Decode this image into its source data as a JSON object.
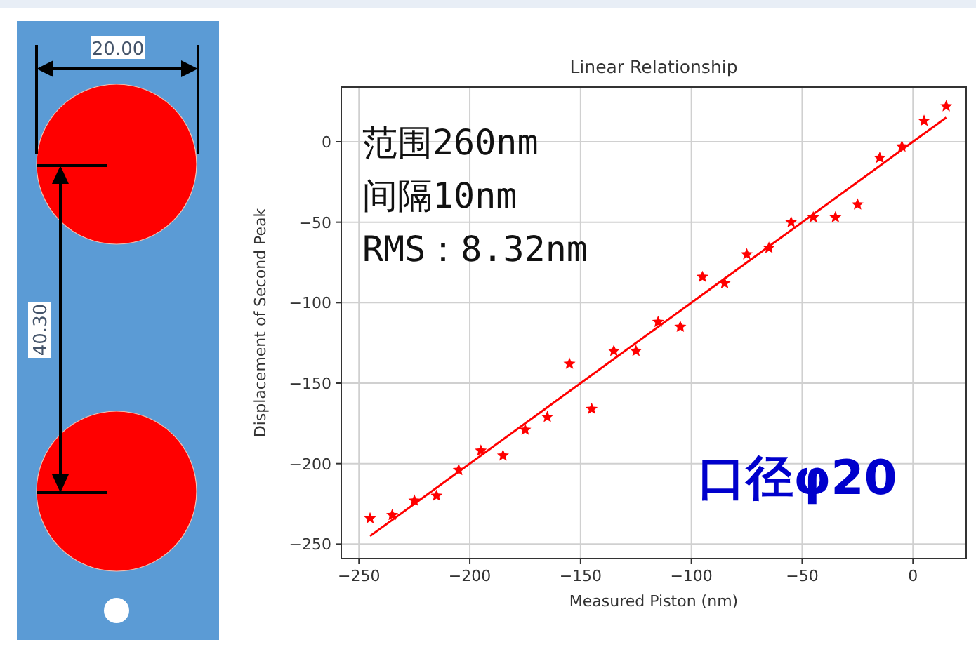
{
  "chart_data": {
    "type": "scatter",
    "title": "Linear Relationship",
    "xlabel": "Measured Piston (nm)",
    "ylabel": "Displacement of Second Peak",
    "xlim": [
      -258,
      24
    ],
    "ylim": [
      -259,
      34
    ],
    "xticks": [
      -250,
      -200,
      -150,
      -100,
      -50,
      0
    ],
    "yticks": [
      -250,
      -200,
      -150,
      -100,
      -50,
      0
    ],
    "grid": true,
    "series": [
      {
        "color": "#ff0000",
        "marker": "star",
        "x": [
          -245,
          -235,
          -225,
          -215,
          -205,
          -195,
          -185,
          -175,
          -165,
          -155,
          -145,
          -135,
          -125,
          -115,
          -105,
          -95,
          -85,
          -75,
          -65,
          -55,
          -45,
          -35,
          -25,
          -15,
          -5,
          5,
          15
        ],
        "values": [
          -234,
          -232,
          -223,
          -220,
          -204,
          -192,
          -195,
          -179,
          -171,
          -138,
          -166,
          -130,
          -130,
          -112,
          -115,
          -84,
          -88,
          -70,
          -66,
          -50,
          -47,
          -47,
          -39,
          -10,
          -3,
          13,
          22
        ]
      },
      {
        "type": "line",
        "marker": "none",
        "color": "#ff0000",
        "x": [
          -245,
          15
        ],
        "values": [
          -245,
          15
        ]
      }
    ],
    "annotations": [
      "范围260nm",
      "间隔10nm",
      "RMS：8.32nm",
      "口径φ20",
      "20.00",
      "40.30"
    ]
  }
}
